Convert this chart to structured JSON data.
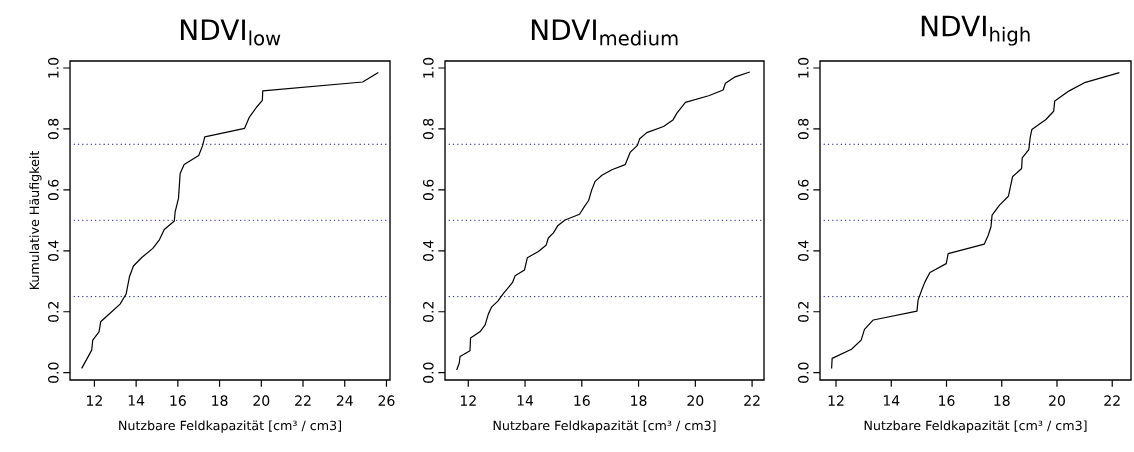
{
  "chart_data": [
    {
      "type": "line",
      "title": "NDVI$_{low}$",
      "xlabel": "Nutzbare Feldkapazität [cm³ / cm3]",
      "ylabel": "Kumulative Häufigkeit",
      "color": "#000000",
      "marker": "none",
      "line_style": "solid",
      "grid": false,
      "x": [
        11.39,
        11.87,
        11.92,
        12.22,
        12.3,
        12.75,
        13.23,
        13.52,
        13.68,
        13.87,
        14.27,
        14.8,
        15.12,
        15.35,
        15.83,
        15.87,
        16.03,
        16.11,
        16.3,
        17.0,
        17.19,
        17.29,
        19.2,
        19.43,
        19.78,
        20.05,
        20.07,
        24.86,
        25.61
      ],
      "values": [
        0.014,
        0.074,
        0.107,
        0.134,
        0.167,
        0.195,
        0.225,
        0.258,
        0.315,
        0.35,
        0.378,
        0.408,
        0.437,
        0.47,
        0.498,
        0.528,
        0.572,
        0.654,
        0.683,
        0.713,
        0.746,
        0.774,
        0.802,
        0.839,
        0.872,
        0.894,
        0.925,
        0.954,
        0.985
      ],
      "xlim": [
        10.83,
        26.17
      ],
      "ylim": [
        -0.024,
        1.023
      ],
      "xticks": [
        12,
        14,
        16,
        18,
        20,
        22,
        24,
        26
      ],
      "yticks": [
        {
          "value": 0,
          "label": "0.0"
        },
        {
          "value": 0.2,
          "label": "0.2"
        },
        {
          "value": 0.4,
          "label": "0.4"
        },
        {
          "value": 0.6,
          "label": "0.6"
        },
        {
          "value": 0.8,
          "label": "0.8"
        },
        {
          "value": 1,
          "label": "1.0"
        }
      ],
      "ref_lines": [
        {
          "axis": "y",
          "value": 0.25,
          "color": "#3a3aaa",
          "line_style": "dotted"
        },
        {
          "axis": "y",
          "value": 0.5,
          "color": "#3a3aaa",
          "line_style": "dotted"
        },
        {
          "axis": "y",
          "value": 0.75,
          "color": "#3a3aaa",
          "line_style": "dotted"
        }
      ]
    },
    {
      "type": "line",
      "title": "NDVI$_{medium}$",
      "xlabel": "Nutzbare Feldkapazität [cm³ / cm3]",
      "color": "#000000",
      "marker": "none",
      "line_style": "solid",
      "grid": false,
      "x": [
        11.59,
        11.68,
        11.71,
        12.06,
        12.08,
        12.41,
        12.59,
        12.71,
        12.82,
        13.04,
        13.24,
        13.56,
        13.65,
        13.98,
        14.08,
        14.47,
        14.74,
        14.82,
        15.0,
        15.15,
        15.41,
        15.92,
        16.09,
        16.24,
        16.35,
        16.47,
        16.71,
        17.06,
        17.53,
        17.71,
        17.96,
        18.04,
        18.29,
        18.88,
        19.21,
        19.35,
        19.65,
        20.47,
        20.98,
        21.06,
        21.38,
        21.92
      ],
      "values": [
        0.009,
        0.031,
        0.053,
        0.072,
        0.114,
        0.134,
        0.156,
        0.193,
        0.215,
        0.235,
        0.26,
        0.296,
        0.318,
        0.337,
        0.377,
        0.398,
        0.418,
        0.442,
        0.459,
        0.482,
        0.501,
        0.52,
        0.545,
        0.565,
        0.6,
        0.628,
        0.648,
        0.666,
        0.683,
        0.724,
        0.746,
        0.768,
        0.788,
        0.808,
        0.829,
        0.852,
        0.887,
        0.909,
        0.928,
        0.95,
        0.97,
        0.987
      ],
      "xlim": [
        11.18,
        22.42
      ],
      "ylim": [
        -0.024,
        1.023
      ],
      "xticks": [
        12,
        14,
        16,
        18,
        20,
        22
      ],
      "yticks": [
        {
          "value": 0,
          "label": "0.0"
        },
        {
          "value": 0.2,
          "label": "0.2"
        },
        {
          "value": 0.4,
          "label": "0.4"
        },
        {
          "value": 0.6,
          "label": "0.6"
        },
        {
          "value": 0.8,
          "label": "0.8"
        },
        {
          "value": 1,
          "label": "1.0"
        }
      ],
      "ref_lines": [
        {
          "axis": "y",
          "value": 0.25,
          "color": "#3a3aaa",
          "line_style": "dotted"
        },
        {
          "axis": "y",
          "value": 0.5,
          "color": "#3a3aaa",
          "line_style": "dotted"
        },
        {
          "axis": "y",
          "value": 0.75,
          "color": "#3a3aaa",
          "line_style": "dotted"
        }
      ]
    },
    {
      "type": "line",
      "title": "NDVI$_{high}$",
      "xlabel": "Nutzbare Feldkapazität [cm³ / cm3]",
      "color": "#000000",
      "marker": "none",
      "line_style": "solid",
      "grid": false,
      "x": [
        11.84,
        11.86,
        12.56,
        12.91,
        13.03,
        13.35,
        14.93,
        14.97,
        15.11,
        15.22,
        15.4,
        15.99,
        16.06,
        17.37,
        17.51,
        17.61,
        17.65,
        17.92,
        18.24,
        18.39,
        18.72,
        18.74,
        18.98,
        19.03,
        19.09,
        19.6,
        19.88,
        19.92,
        20.44,
        21.03,
        22.26
      ],
      "values": [
        0.014,
        0.047,
        0.077,
        0.107,
        0.142,
        0.173,
        0.202,
        0.238,
        0.273,
        0.298,
        0.329,
        0.358,
        0.391,
        0.422,
        0.451,
        0.479,
        0.517,
        0.55,
        0.579,
        0.643,
        0.67,
        0.705,
        0.732,
        0.772,
        0.798,
        0.831,
        0.858,
        0.892,
        0.925,
        0.953,
        0.985
      ],
      "xlim": [
        11.42,
        22.68
      ],
      "ylim": [
        -0.024,
        1.023
      ],
      "xticks": [
        12,
        14,
        16,
        18,
        20,
        22
      ],
      "yticks": [
        {
          "value": 0,
          "label": "0.0"
        },
        {
          "value": 0.2,
          "label": "0.2"
        },
        {
          "value": 0.4,
          "label": "0.4"
        },
        {
          "value": 0.6,
          "label": "0.6"
        },
        {
          "value": 0.8,
          "label": "0.8"
        },
        {
          "value": 1,
          "label": "1.0"
        }
      ],
      "ref_lines": [
        {
          "axis": "y",
          "value": 0.25,
          "color": "#3a3aaa",
          "line_style": "dotted"
        },
        {
          "axis": "y",
          "value": 0.5,
          "color": "#3a3aaa",
          "line_style": "dotted"
        },
        {
          "axis": "y",
          "value": 0.75,
          "color": "#3a3aaa",
          "line_style": "dotted"
        }
      ]
    }
  ]
}
